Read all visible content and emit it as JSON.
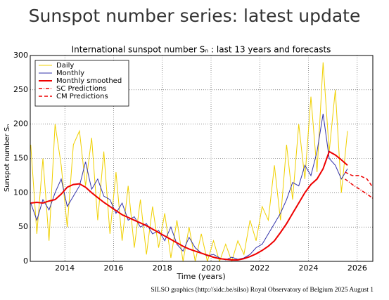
{
  "heading": "Sunspot number series: latest update",
  "footer": "SILSO graphics (http://sidc.be/silso)  Royal Observatory of Belgium  2025 August 1",
  "chart_data": {
    "type": "line",
    "title": "International sunspot number Sₙ : last 13 years and forecasts",
    "x_label": "Time (years)",
    "y_label": "Sunspot number Sₙ",
    "xlim": [
      2012.58,
      2026.64
    ],
    "ylim": [
      0,
      300
    ],
    "xticks": [
      2014,
      2016,
      2018,
      2020,
      2022,
      2024,
      2026
    ],
    "yticks": [
      0,
      50,
      100,
      150,
      200,
      250,
      300
    ],
    "grid": true,
    "legend": "upper left",
    "x": [
      2012.6,
      2012.85,
      2013.1,
      2013.35,
      2013.6,
      2013.85,
      2014.1,
      2014.35,
      2014.6,
      2014.85,
      2015.1,
      2015.35,
      2015.6,
      2015.85,
      2016.1,
      2016.35,
      2016.6,
      2016.85,
      2017.1,
      2017.35,
      2017.6,
      2017.85,
      2018.1,
      2018.35,
      2018.6,
      2018.85,
      2019.1,
      2019.35,
      2019.6,
      2019.85,
      2020.1,
      2020.35,
      2020.6,
      2020.85,
      2021.1,
      2021.35,
      2021.6,
      2021.85,
      2022.1,
      2022.35,
      2022.6,
      2022.85,
      2023.1,
      2023.35,
      2023.6,
      2023.85,
      2024.1,
      2024.35,
      2024.6,
      2024.85,
      2025.1,
      2025.35,
      2025.6
    ],
    "series": [
      {
        "name": "Daily",
        "color": "#f0d000",
        "style": "solid",
        "width": 1,
        "values": [
          170,
          40,
          150,
          30,
          200,
          140,
          50,
          170,
          190,
          110,
          180,
          60,
          160,
          40,
          130,
          30,
          110,
          20,
          90,
          10,
          80,
          20,
          70,
          5,
          60,
          0,
          50,
          0,
          40,
          0,
          30,
          0,
          25,
          0,
          30,
          10,
          60,
          30,
          80,
          60,
          140,
          60,
          170,
          90,
          200,
          120,
          240,
          130,
          290,
          160,
          250,
          100,
          190
        ]
      },
      {
        "name": "Monthly",
        "color": "#3333aa",
        "style": "solid",
        "width": 1,
        "values": [
          85,
          60,
          90,
          75,
          100,
          120,
          80,
          95,
          110,
          145,
          105,
          120,
          95,
          90,
          70,
          85,
          60,
          65,
          50,
          55,
          40,
          45,
          30,
          50,
          25,
          15,
          35,
          20,
          12,
          8,
          10,
          5,
          2,
          6,
          3,
          5,
          10,
          20,
          25,
          40,
          55,
          70,
          90,
          115,
          110,
          140,
          125,
          160,
          215,
          150,
          140,
          120,
          135
        ]
      },
      {
        "name": "Monthly smoothed",
        "color": "#ee0000",
        "style": "solid",
        "width": 2,
        "values": [
          85,
          86,
          85,
          88,
          90,
          98,
          108,
          112,
          113,
          108,
          100,
          93,
          86,
          80,
          74,
          68,
          64,
          60,
          56,
          52,
          47,
          42,
          37,
          32,
          27,
          22,
          18,
          15,
          12,
          9,
          6,
          4,
          3,
          2,
          2,
          4,
          7,
          11,
          16,
          22,
          30,
          42,
          55,
          70,
          85,
          100,
          112,
          120,
          135,
          160,
          155,
          148,
          140
        ]
      },
      {
        "name": "SC Predictions",
        "color": "#ee0000",
        "style": "dashdot",
        "width": 1.5,
        "x": [
          2025.5,
          2025.8,
          2026.1,
          2026.4,
          2026.64
        ],
        "values": [
          120,
          112,
          105,
          98,
          92
        ]
      },
      {
        "name": "CM Predictions",
        "color": "#ee0000",
        "style": "dashed",
        "width": 1.5,
        "x": [
          2025.5,
          2025.8,
          2026.1,
          2026.4,
          2026.64
        ],
        "values": [
          130,
          125,
          125,
          120,
          108
        ]
      }
    ]
  }
}
